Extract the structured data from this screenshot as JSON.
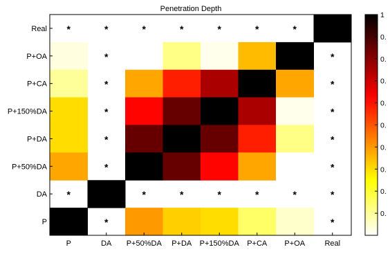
{
  "chart_data": {
    "type": "heatmap",
    "title": "Penetration Depth",
    "xlabel": "",
    "ylabel": "",
    "x_categories": [
      "P",
      "DA",
      "P+50%DA",
      "P+DA",
      "P+150%DA",
      "P+CA",
      "P+OA",
      "Real"
    ],
    "y_categories": [
      "Real",
      "P+OA",
      "P+CA",
      "P+150%DA",
      "P+DA",
      "P+50%DA",
      "DA",
      "P"
    ],
    "values": [
      [
        null,
        null,
        null,
        null,
        null,
        null,
        null,
        1.0
      ],
      [
        0.03,
        null,
        0.0,
        0.12,
        0.02,
        0.35,
        1.0,
        null
      ],
      [
        0.1,
        null,
        0.38,
        0.58,
        0.75,
        1.0,
        0.38,
        null
      ],
      [
        0.3,
        null,
        0.62,
        0.85,
        1.0,
        0.75,
        0.02,
        null
      ],
      [
        0.3,
        null,
        0.85,
        1.0,
        0.85,
        0.58,
        0.12,
        null
      ],
      [
        0.38,
        null,
        1.0,
        0.85,
        0.62,
        0.38,
        0.0,
        null
      ],
      [
        null,
        1.0,
        null,
        null,
        null,
        null,
        null,
        null
      ],
      [
        1.0,
        null,
        0.4,
        0.32,
        0.3,
        0.15,
        0.05,
        null
      ]
    ],
    "missing_marker": "*",
    "colormap": "hot-reversed",
    "colorbar": {
      "range": [
        0,
        1
      ],
      "ticks": [
        {
          "value": 0.1,
          "label": "0."
        },
        {
          "value": 0.2,
          "label": "0."
        },
        {
          "value": 0.3,
          "label": "0."
        },
        {
          "value": 0.4,
          "label": "0."
        },
        {
          "value": 0.5,
          "label": "0."
        },
        {
          "value": 0.6,
          "label": "0."
        },
        {
          "value": 0.7,
          "label": "0."
        },
        {
          "value": 0.8,
          "label": "0."
        },
        {
          "value": 0.9,
          "label": "0."
        },
        {
          "value": 1.0,
          "label": "1"
        }
      ]
    },
    "grid": false,
    "legend": "colorbar-right"
  }
}
